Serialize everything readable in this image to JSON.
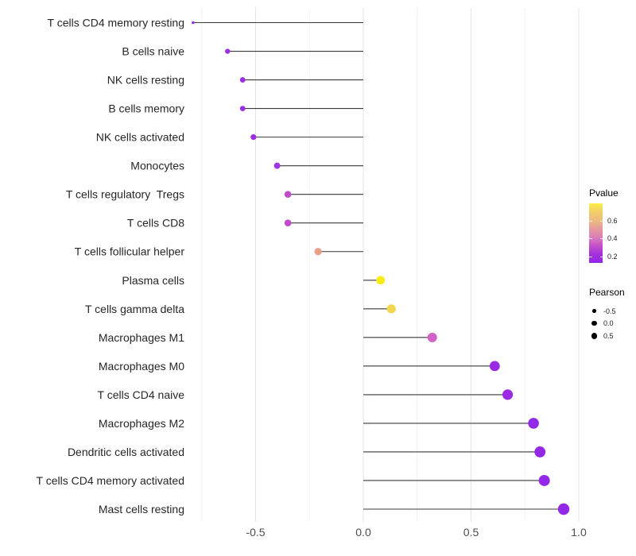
{
  "chart_data": {
    "type": "scatter",
    "variant": "horizontal-lollipop",
    "title": "",
    "xlabel": "",
    "ylabel": "",
    "grid": "vertical-gridlines-only",
    "xlim": [
      -0.87,
      1.02
    ],
    "baseline_x": 0,
    "x_major_ticks": [
      -0.5,
      0.0,
      0.5,
      1.0
    ],
    "x_tick_labels": [
      "-0.5",
      "0.0",
      "0.5",
      "1.0"
    ],
    "x_minor_gridlines": [
      -0.75,
      -0.25,
      0.25,
      0.75
    ],
    "categories": [
      "T cells CD4 memory resting",
      "B cells naive",
      "NK cells resting",
      "B cells memory",
      "NK cells activated",
      "Monocytes",
      "T cells regulatory  Tregs",
      "T cells CD8",
      "T cells follicular helper",
      "Plasma cells",
      "T cells gamma delta",
      "Macrophages M1",
      "Macrophages M0",
      "T cells CD4 naive",
      "Macrophages M2",
      "Dendritic cells activated",
      "T cells CD4 memory activated",
      "Mast cells resting"
    ],
    "points": [
      {
        "label": "T cells CD4 memory resting",
        "pearson": -0.79,
        "dot_color": "#9C2FE4",
        "dot_radius": 1.8
      },
      {
        "label": "B cells naive",
        "pearson": -0.63,
        "dot_color": "#9C2FE4",
        "dot_radius": 3.2
      },
      {
        "label": "NK cells resting",
        "pearson": -0.56,
        "dot_color": "#9C2FE4",
        "dot_radius": 3.4
      },
      {
        "label": "B cells memory",
        "pearson": -0.56,
        "dot_color": "#9C2FE4",
        "dot_radius": 3.4
      },
      {
        "label": "NK cells activated",
        "pearson": -0.51,
        "dot_color": "#9C2FE4",
        "dot_radius": 3.6
      },
      {
        "label": "Monocytes",
        "pearson": -0.4,
        "dot_color": "#A036DF",
        "dot_radius": 4.0
      },
      {
        "label": "T cells regulatory  Tregs",
        "pearson": -0.35,
        "dot_color": "#C24BCB",
        "dot_radius": 4.3
      },
      {
        "label": "T cells CD8",
        "pearson": -0.35,
        "dot_color": "#C24BCB",
        "dot_radius": 4.3
      },
      {
        "label": "T cells follicular helper",
        "pearson": -0.21,
        "dot_color": "#EB9E87",
        "dot_radius": 4.6
      },
      {
        "label": "Plasma cells",
        "pearson": 0.08,
        "dot_color": "#F8EC15",
        "dot_radius": 5.4
      },
      {
        "label": "T cells gamma delta",
        "pearson": 0.13,
        "dot_color": "#F3D64B",
        "dot_radius": 5.6
      },
      {
        "label": "Macrophages M1",
        "pearson": 0.32,
        "dot_color": "#D063C5",
        "dot_radius": 6.0
      },
      {
        "label": "Macrophages M0",
        "pearson": 0.61,
        "dot_color": "#9A2BE3",
        "dot_radius": 6.4
      },
      {
        "label": "T cells CD4 naive",
        "pearson": 0.67,
        "dot_color": "#9A2BE3",
        "dot_radius": 6.6
      },
      {
        "label": "Macrophages M2",
        "pearson": 0.79,
        "dot_color": "#9328E6",
        "dot_radius": 6.8
      },
      {
        "label": "Dendritic cells activated",
        "pearson": 0.82,
        "dot_color": "#9328E6",
        "dot_radius": 6.9
      },
      {
        "label": "T cells CD4 memory activated",
        "pearson": 0.84,
        "dot_color": "#9328E6",
        "dot_radius": 7.0
      },
      {
        "label": "Mast cells resting",
        "pearson": 0.93,
        "dot_color": "#9328E6",
        "dot_radius": 7.2
      }
    ],
    "color_legend": {
      "title": "Pvalue",
      "position": "right",
      "orientation": "vertical",
      "tick_labels": [
        "0.6",
        "0.4",
        "0.2"
      ],
      "gradient_top_to_bottom": [
        "#FAEE4B",
        "#F2CE68",
        "#EDBA80",
        "#E59A9D",
        "#DB7FB9",
        "#C44FCA",
        "#A430DC",
        "#9227E6"
      ]
    },
    "size_legend": {
      "title": "Pearson",
      "position": "right",
      "dot_color": "#000000",
      "items": [
        {
          "label": "-0.5",
          "radius_px": 2.3
        },
        {
          "label": "0.0",
          "radius_px": 3.1
        },
        {
          "label": "0.5",
          "radius_px": 3.9
        }
      ]
    },
    "style": {
      "segment_color": "#3a3a3a",
      "major_grid_color": "#e5e5e5",
      "minor_grid_color": "#f2f2f2",
      "axis_text_color": "#4d4d4d",
      "category_text_color": "#262626",
      "background": "#ffffff"
    }
  }
}
